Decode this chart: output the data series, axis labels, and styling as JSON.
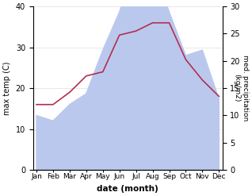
{
  "months": [
    "Jan",
    "Feb",
    "Mar",
    "Apr",
    "May",
    "Jun",
    "Jul",
    "Aug",
    "Sep",
    "Oct",
    "Nov",
    "Dec"
  ],
  "temp": [
    16,
    16,
    19,
    23,
    24,
    33,
    34,
    36,
    36,
    27,
    22,
    18
  ],
  "precip": [
    10,
    9,
    12,
    14,
    22,
    29,
    38,
    38,
    29,
    21,
    22,
    13
  ],
  "temp_color": "#b03050",
  "precip_fill_color": "#bbc8ee",
  "ylabel_left": "max temp (C)",
  "ylabel_right": "med. precipitation\n(kg/m2)",
  "xlabel": "date (month)",
  "ylim_left": [
    0,
    40
  ],
  "ylim_right": [
    0,
    30
  ],
  "yticks_left": [
    0,
    10,
    20,
    30,
    40
  ],
  "yticks_right": [
    0,
    5,
    10,
    15,
    20,
    25,
    30
  ],
  "bg_color": "#ffffff",
  "grid_color": "#dddddd"
}
